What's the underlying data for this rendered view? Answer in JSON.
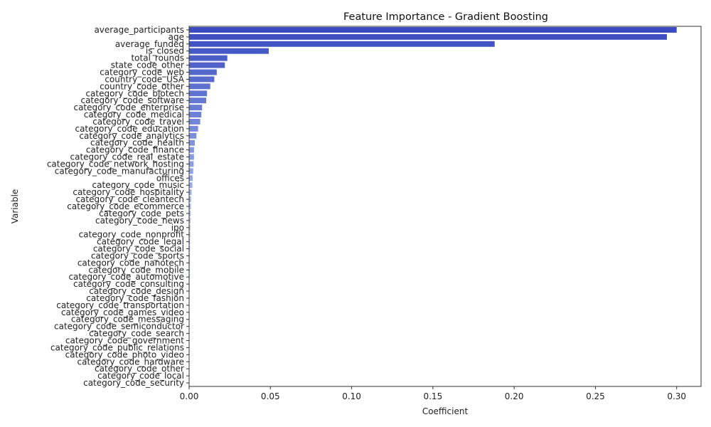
{
  "chart_data": {
    "type": "bar",
    "orientation": "horizontal",
    "title": "Feature Importance - Gradient Boosting",
    "xlabel": "Coefficient",
    "ylabel": "Variable",
    "xlim": [
      0,
      0.315
    ],
    "xticks": [
      0.0,
      0.05,
      0.1,
      0.15,
      0.2,
      0.25,
      0.3
    ],
    "xtick_labels": [
      "0.00",
      "0.05",
      "0.10",
      "0.15",
      "0.20",
      "0.25",
      "0.30"
    ],
    "grid": false,
    "palette": "coolwarm",
    "categories": [
      "average_participants",
      "age",
      "average_funded",
      "is_closed",
      "total_rounds",
      "state_code_other",
      "category_code_web",
      "country_code_USA",
      "country_code_other",
      "category_code_biotech",
      "category_code_software",
      "category_code_enterprise",
      "category_code_medical",
      "category_code_travel",
      "category_code_education",
      "category_code_analytics",
      "category_code_health",
      "category_code_finance",
      "category_code_real_estate",
      "category_code_network_hosting",
      "category_code_manufacturing",
      "offices",
      "category_code_music",
      "category_code_hospitality",
      "category_code_cleantech",
      "category_code_ecommerce",
      "category_code_pets",
      "category_code_news",
      "ipo",
      "category_code_nonprofit",
      "category_code_legal",
      "category_code_social",
      "category_code_sports",
      "category_code_nanotech",
      "category_code_mobile",
      "category_code_automotive",
      "category_code_consulting",
      "category_code_design",
      "category_code_fashion",
      "category_code_transportation",
      "category_code_games_video",
      "category_code_messaging",
      "category_code_semiconductor",
      "category_code_search",
      "category_code_government",
      "category_code_public_relations",
      "category_code_photo_video",
      "category_code_hardware",
      "category_code_other",
      "category_code_local",
      "category_code_security"
    ],
    "values": [
      0.3,
      0.294,
      0.188,
      0.049,
      0.0235,
      0.022,
      0.017,
      0.0155,
      0.013,
      0.011,
      0.0105,
      0.008,
      0.0075,
      0.0068,
      0.0055,
      0.0045,
      0.0035,
      0.003,
      0.003,
      0.0028,
      0.0025,
      0.0022,
      0.002,
      0.0015,
      0.0012,
      0.0011,
      0.001,
      0.0009,
      0.0008,
      0.0007,
      0.0006,
      0.0006,
      0.0005,
      0.0005,
      0.0004,
      0.0004,
      0.0003,
      0.0003,
      0.0003,
      0.0002,
      0.0002,
      0.0002,
      0.0002,
      0.0001,
      0.0001,
      0.0001,
      0.0001,
      0.0001,
      0.0001,
      5e-05,
      5e-05
    ]
  }
}
